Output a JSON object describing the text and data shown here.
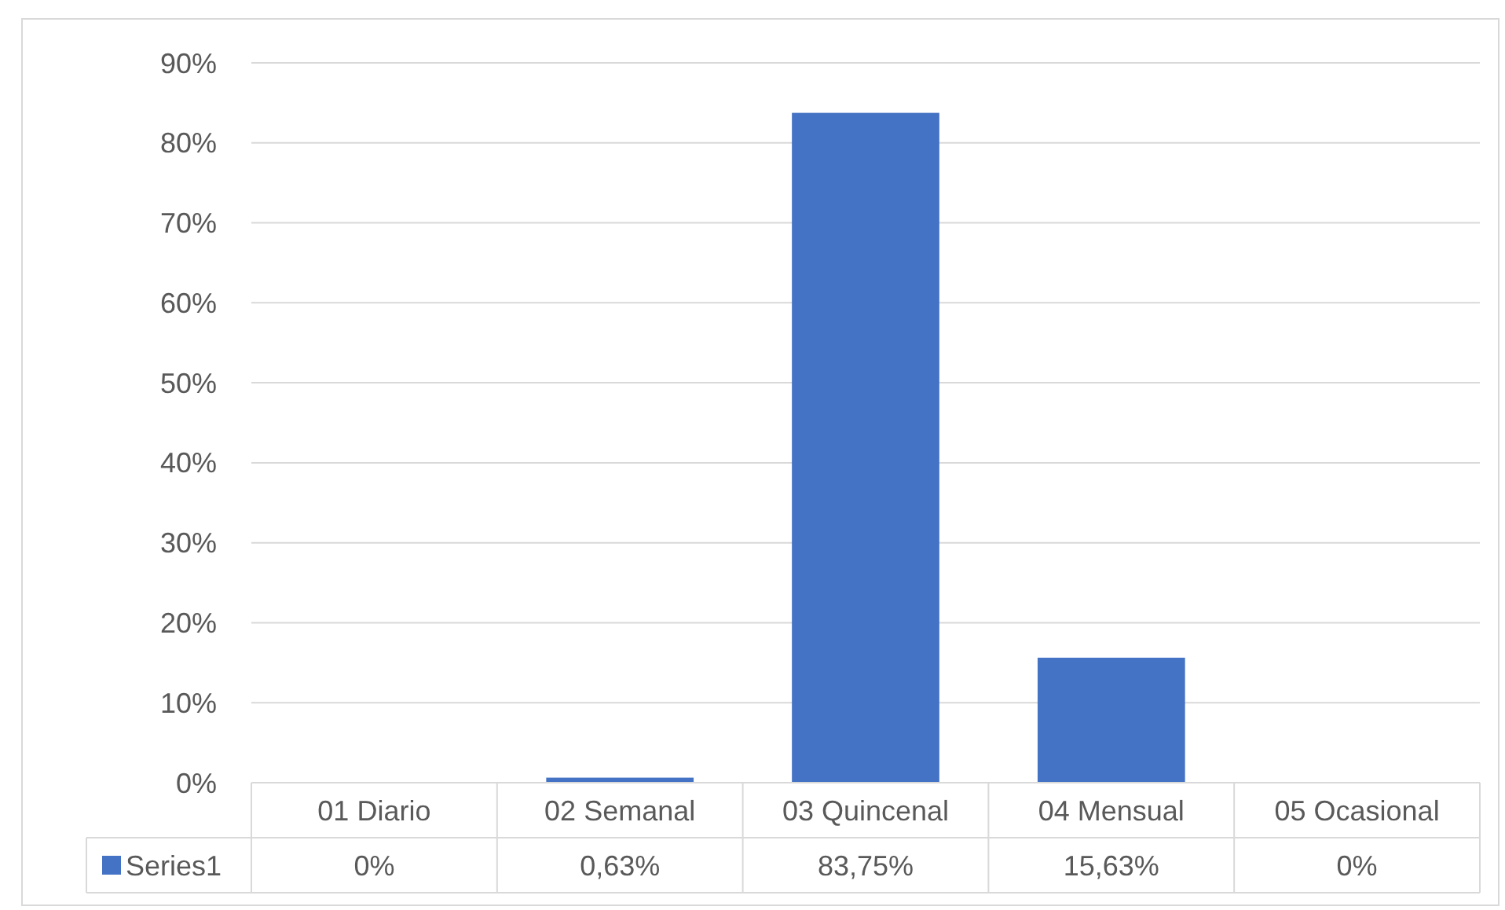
{
  "chart_data": {
    "type": "bar",
    "categories": [
      "01 Diario",
      "02 Semanal",
      "03 Quincenal",
      "04 Mensual",
      "05 Ocasional"
    ],
    "series": [
      {
        "name": "Series1",
        "color": "#4472c4",
        "values": [
          0,
          0.63,
          83.75,
          15.63,
          0
        ],
        "value_labels": [
          "0%",
          "0,63%",
          "83,75%",
          "15,63%",
          "0%"
        ]
      }
    ],
    "ylim": [
      0,
      90
    ],
    "yticks": [
      {
        "value": 0,
        "label": "0%"
      },
      {
        "value": 10,
        "label": "10%"
      },
      {
        "value": 20,
        "label": "20%"
      },
      {
        "value": 30,
        "label": "30%"
      },
      {
        "value": 40,
        "label": "40%"
      },
      {
        "value": 50,
        "label": "50%"
      },
      {
        "value": 60,
        "label": "60%"
      },
      {
        "value": 70,
        "label": "70%"
      },
      {
        "value": 80,
        "label": "80%"
      },
      {
        "value": 90,
        "label": "90%"
      }
    ],
    "grid": "y",
    "legend": "bottom"
  }
}
